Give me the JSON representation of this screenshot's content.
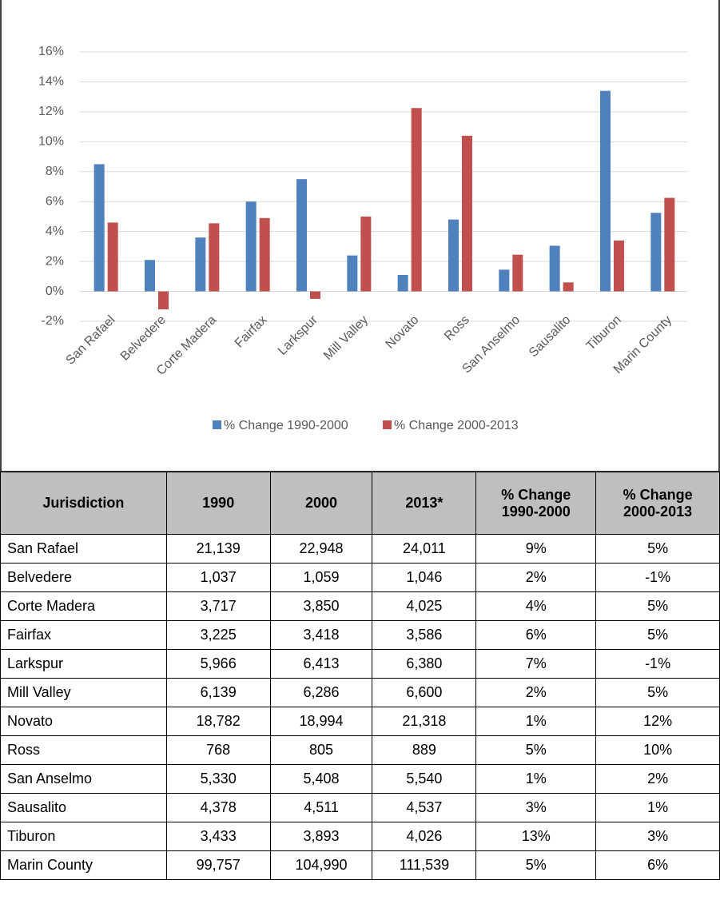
{
  "chart_data": {
    "type": "bar",
    "categories": [
      "San Rafael",
      "Belvedere",
      "Corte Madera",
      "Fairfax",
      "Larkspur",
      "Mill Valley",
      "Novato",
      "Ross",
      "San Anselmo",
      "Sausalito",
      "Tiburon",
      "Marin County"
    ],
    "series": [
      {
        "name": "% Change 1990-2000",
        "color": "#4f81bd",
        "values": [
          8.5,
          2.1,
          3.6,
          6.0,
          7.5,
          2.4,
          1.1,
          4.8,
          1.45,
          3.05,
          13.4,
          5.25
        ]
      },
      {
        "name": "% Change 2000-2013",
        "color": "#c0504d",
        "values": [
          4.6,
          -1.2,
          4.55,
          4.9,
          -0.5,
          5.0,
          12.25,
          10.4,
          2.45,
          0.6,
          3.4,
          6.25
        ]
      }
    ],
    "ylim": [
      -2,
      16
    ],
    "yticks": [
      {
        "value": -2,
        "label": "-2%"
      },
      {
        "value": 0,
        "label": "0%"
      },
      {
        "value": 2,
        "label": "2%"
      },
      {
        "value": 4,
        "label": "4%"
      },
      {
        "value": 6,
        "label": "6%"
      },
      {
        "value": 8,
        "label": "8%"
      },
      {
        "value": 10,
        "label": "10%"
      },
      {
        "value": 12,
        "label": "12%"
      },
      {
        "value": 14,
        "label": "14%"
      },
      {
        "value": 16,
        "label": "16%"
      }
    ],
    "grid": true,
    "legend": "bottom"
  },
  "table": {
    "header": [
      "Jurisdiction",
      "1990",
      "2000",
      "2013*",
      "% Change 1990-2000",
      "% Change 2000-2013"
    ],
    "rows": [
      [
        "San Rafael",
        "21,139",
        "22,948",
        "24,011",
        "9%",
        "5%"
      ],
      [
        "Belvedere",
        "1,037",
        "1,059",
        "1,046",
        "2%",
        "-1%"
      ],
      [
        "Corte Madera",
        "3,717",
        "3,850",
        "4,025",
        "4%",
        "5%"
      ],
      [
        "Fairfax",
        "3,225",
        "3,418",
        "3,586",
        "6%",
        "5%"
      ],
      [
        "Larkspur",
        "5,966",
        "6,413",
        "6,380",
        "7%",
        "-1%"
      ],
      [
        "Mill Valley",
        "6,139",
        "6,286",
        "6,600",
        "2%",
        "5%"
      ],
      [
        "Novato",
        "18,782",
        "18,994",
        "21,318",
        "1%",
        "12%"
      ],
      [
        "Ross",
        "768",
        "805",
        "889",
        "5%",
        "10%"
      ],
      [
        "San Anselmo",
        "5,330",
        "5,408",
        "5,540",
        "1%",
        "2%"
      ],
      [
        "Sausalito",
        "4,378",
        "4,511",
        "4,537",
        "3%",
        "1%"
      ],
      [
        "Tiburon",
        "3,433",
        "3,893",
        "4,026",
        "13%",
        "3%"
      ],
      [
        "Marin County",
        "99,757",
        "104,990",
        "111,539",
        "5%",
        "6%"
      ]
    ]
  }
}
